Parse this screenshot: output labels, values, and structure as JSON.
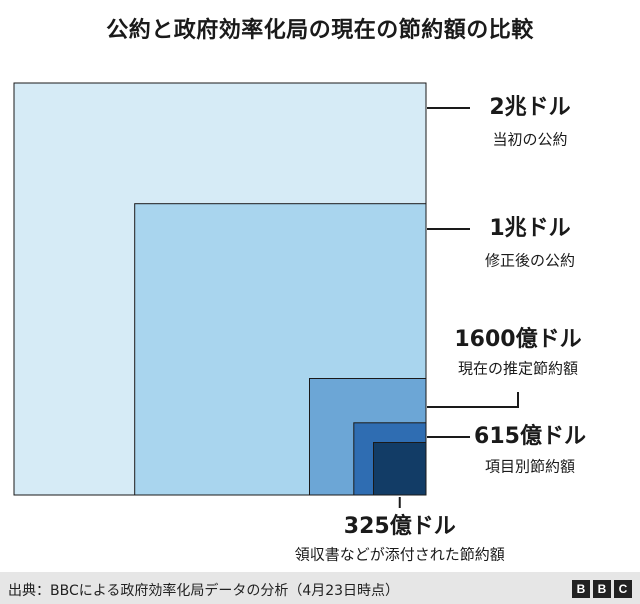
{
  "chart_data": {
    "type": "nested-area",
    "title": "公約と政府効率化局の現在の節約額の比較",
    "unit": "ドル",
    "series": [
      {
        "value_label": "2兆ドル",
        "name": "当初の公約",
        "value": 2000000000000,
        "color": "#d6ebf6"
      },
      {
        "value_label": "1兆ドル",
        "name": "修正後の公約",
        "value": 1000000000000,
        "color": "#a9d5ee"
      },
      {
        "value_label": "1600億ドル",
        "name": "現在の推定節約額",
        "value": 160000000000,
        "color": "#6ca6d6"
      },
      {
        "value_label": "615億ドル",
        "name": "項目別節約額",
        "value": 61500000000,
        "color": "#2f6db2"
      },
      {
        "value_label": "325億ドル",
        "name": "領収書などが添付された節約額",
        "value": 32500000000,
        "color": "#123c66"
      }
    ]
  },
  "footer": {
    "source": "出典：BBCによる政府効率化局データの分析（4月23日時点）",
    "logo": [
      "B",
      "B",
      "C"
    ]
  }
}
